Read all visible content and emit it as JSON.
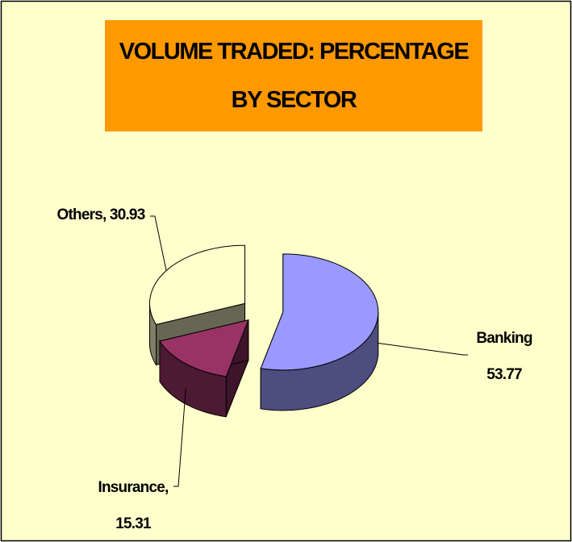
{
  "chart_data": {
    "type": "pie3d",
    "title": "VOLUME TRADED: PERCENTAGE BY SECTOR",
    "categories": [
      "Banking",
      "Insurance,",
      "Others,"
    ],
    "values": [
      53.77,
      15.31,
      30.93
    ],
    "colors": [
      "#9999ff",
      "#993366",
      "#ffffcc"
    ]
  }
}
